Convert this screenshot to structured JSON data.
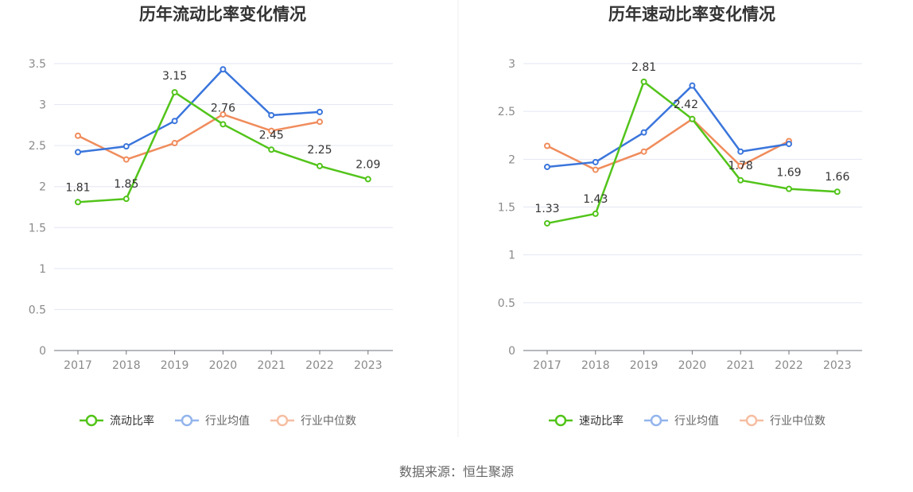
{
  "source_text": "数据来源：恒生聚源",
  "colors": {
    "green": "#52c41a",
    "blue": "#3a75dc",
    "orange": "#f08c5c",
    "grid": "#e3e6f3",
    "axis": "#6e7079"
  },
  "chart_data": [
    {
      "type": "line",
      "title": "历年流动比率变化情况",
      "categories": [
        "2017",
        "2018",
        "2019",
        "2020",
        "2021",
        "2022",
        "2023"
      ],
      "ylim": [
        0,
        3.5
      ],
      "yticks": [
        "0",
        "0.5",
        "1",
        "1.5",
        "2",
        "2.5",
        "3",
        "3.5"
      ],
      "series": [
        {
          "name": "流动比率",
          "color": "#52c41a",
          "values": [
            1.81,
            1.85,
            3.15,
            2.76,
            2.45,
            2.25,
            2.09
          ],
          "labels": [
            "1.81",
            "1.85",
            "3.15",
            "2.76",
            "2.45",
            "2.25",
            "2.09"
          ]
        },
        {
          "name": "行业均值",
          "color": "#3a75dc",
          "values": [
            2.42,
            2.49,
            2.8,
            3.43,
            2.87,
            2.91,
            null
          ]
        },
        {
          "name": "行业中位数",
          "color": "#f08c5c",
          "values": [
            2.62,
            2.33,
            2.53,
            2.88,
            2.68,
            2.79,
            null
          ]
        }
      ]
    },
    {
      "type": "line",
      "title": "历年速动比率变化情况",
      "categories": [
        "2017",
        "2018",
        "2019",
        "2020",
        "2021",
        "2022",
        "2023"
      ],
      "ylim": [
        0,
        3
      ],
      "yticks": [
        "0",
        "0.5",
        "1",
        "1.5",
        "2",
        "2.5",
        "3"
      ],
      "series": [
        {
          "name": "速动比率",
          "color": "#52c41a",
          "values": [
            1.33,
            1.43,
            2.81,
            2.42,
            1.78,
            1.69,
            1.66
          ],
          "labels": [
            "1.33",
            "1.43",
            "2.81",
            "2.42",
            "1.78",
            "1.69",
            "1.66"
          ]
        },
        {
          "name": "行业均值",
          "color": "#3a75dc",
          "values": [
            1.92,
            1.97,
            2.28,
            2.77,
            2.08,
            2.16,
            null
          ]
        },
        {
          "name": "行业中位数",
          "color": "#f08c5c",
          "values": [
            2.14,
            1.89,
            2.08,
            2.42,
            1.93,
            2.19,
            null
          ]
        }
      ]
    }
  ]
}
